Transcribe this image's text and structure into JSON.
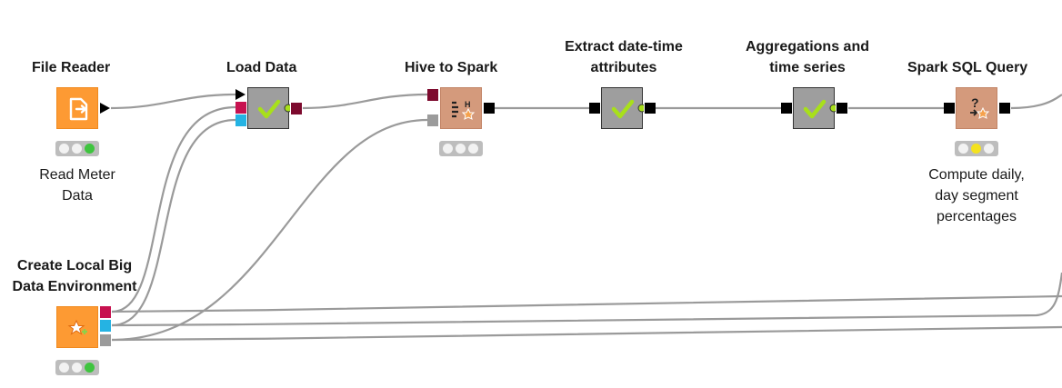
{
  "workflow": {
    "nodes": [
      {
        "id": "file-reader",
        "title": "File Reader",
        "description": [
          "Read Meter",
          "Data"
        ],
        "status": "executed"
      },
      {
        "id": "load-data",
        "title": "Load Data",
        "description": [],
        "status": "none"
      },
      {
        "id": "hive-to-spark",
        "title": "Hive to Spark",
        "description": [],
        "status": "idle"
      },
      {
        "id": "extract-datetime",
        "title": [
          "Extract date-time",
          "attributes"
        ],
        "description": [],
        "status": "none"
      },
      {
        "id": "aggregations",
        "title": [
          "Aggregations and",
          "time series"
        ],
        "description": [],
        "status": "none"
      },
      {
        "id": "spark-sql",
        "title": "Spark SQL Query",
        "description": [
          "Compute daily,",
          "day segment",
          "percentages"
        ],
        "status": "configured"
      },
      {
        "id": "create-local-bigdata",
        "title": [
          "Create Local Big",
          "Data Environment"
        ],
        "description": [],
        "status": "executed"
      }
    ],
    "colors": {
      "node_orange": "#fd9a33",
      "node_gray": "#9e9e9e",
      "node_spark": "#d49a7c",
      "check": "#a8e01a",
      "port_magenta": "#c7114f",
      "port_cyan": "#25b3e3",
      "port_maroon": "#7d0a2e",
      "status_green": "#3fc43f",
      "status_yellow": "#f4e21e"
    }
  }
}
